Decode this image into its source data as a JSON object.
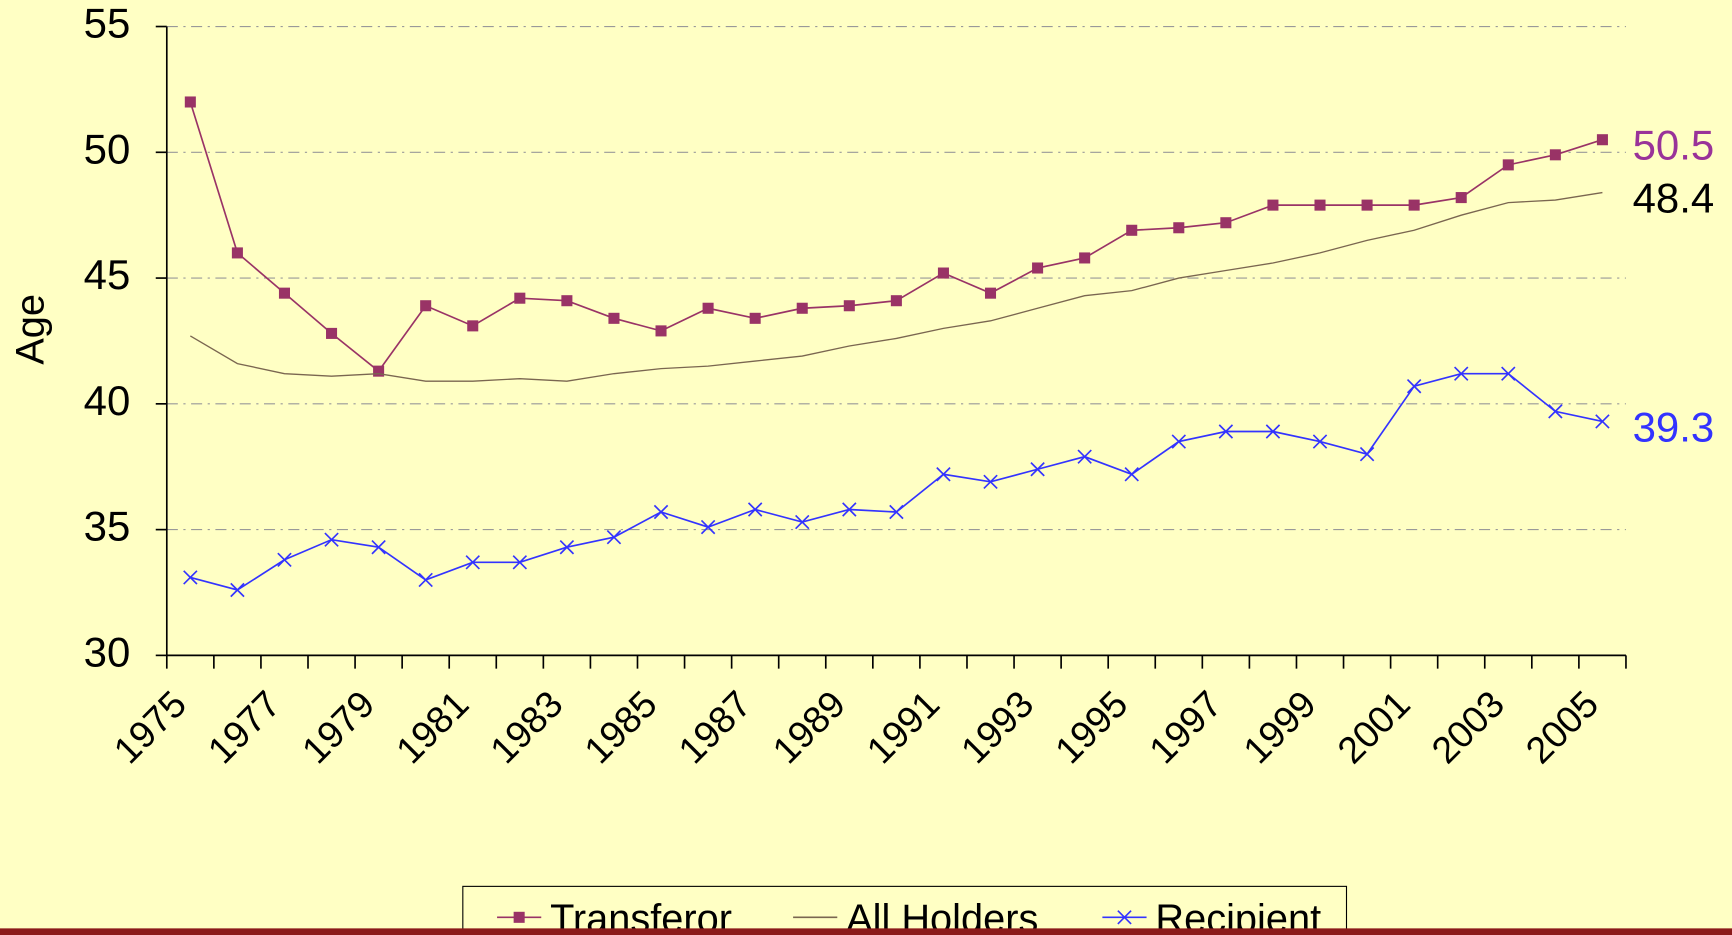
{
  "chart_data": {
    "type": "line",
    "y_label": "Age",
    "categories": [
      "1975",
      null,
      "1977",
      null,
      "1979",
      null,
      "1981",
      null,
      "1983",
      null,
      "1985",
      null,
      "1987",
      null,
      "1989",
      null,
      "1991",
      null,
      "1993",
      null,
      "1995",
      null,
      "1997",
      null,
      "1999",
      null,
      "2001",
      null,
      "2003",
      null,
      "2005"
    ],
    "series": [
      {
        "name": "Transferor",
        "color": "#993366",
        "marker": "square",
        "label_color": "#993399",
        "values": [
          52.0,
          46.0,
          44.4,
          42.8,
          41.3,
          43.9,
          43.1,
          44.2,
          44.1,
          43.4,
          42.9,
          43.8,
          43.4,
          43.8,
          43.9,
          44.1,
          45.2,
          44.4,
          45.4,
          45.8,
          46.9,
          47.0,
          47.2,
          47.9,
          47.9,
          47.9,
          47.9,
          48.2,
          49.5,
          49.9,
          50.5
        ]
      },
      {
        "name": "All Holders",
        "color": "#7a6650",
        "marker": "none",
        "label_color": "#000000",
        "values": [
          42.7,
          41.6,
          41.2,
          41.1,
          41.2,
          40.9,
          40.9,
          41.0,
          40.9,
          41.2,
          41.4,
          41.5,
          41.7,
          41.9,
          42.3,
          42.6,
          43.0,
          43.3,
          43.8,
          44.3,
          44.5,
          45.0,
          45.3,
          45.6,
          46.0,
          46.5,
          46.9,
          47.5,
          48.0,
          48.1,
          48.4
        ]
      },
      {
        "name": "Recipient",
        "color": "#3333ff",
        "marker": "x",
        "label_color": "#3333ff",
        "values": [
          33.1,
          32.6,
          33.8,
          34.6,
          34.3,
          33.0,
          33.7,
          33.7,
          34.3,
          34.7,
          35.7,
          35.1,
          35.8,
          35.3,
          35.8,
          35.7,
          37.2,
          36.9,
          37.4,
          37.9,
          37.2,
          38.5,
          38.9,
          38.9,
          38.5,
          38.0,
          40.7,
          41.2,
          41.2,
          39.7,
          39.3
        ]
      }
    ],
    "ylim": [
      30,
      55
    ],
    "yticks": [
      30,
      35,
      40,
      45,
      50,
      55
    ],
    "grid": true,
    "end_labels": true,
    "legend": "bottom"
  }
}
